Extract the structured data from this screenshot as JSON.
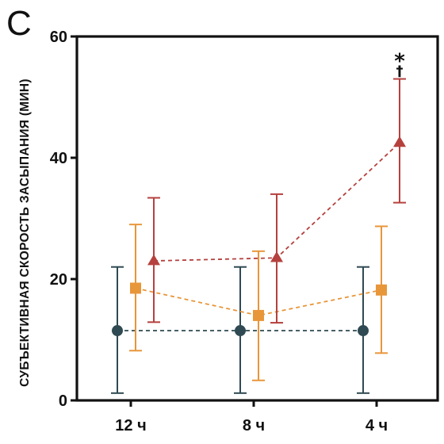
{
  "panel_letter": "C",
  "chart_data": {
    "type": "line",
    "title": "",
    "xlabel": "",
    "ylabel": "СУБЪЕКТИВНАЯ СКОРОСТЬ ЗАСЫПАНИЯ (МИН)",
    "categories": [
      "12 ч",
      "8 ч",
      "4 ч"
    ],
    "ylim": [
      0,
      60
    ],
    "yticks": [
      0,
      20,
      40,
      60
    ],
    "grid": false,
    "error_bars": true,
    "series": [
      {
        "color": "#2f4a52",
        "marker": "circle",
        "values": [
          11.5,
          11.5,
          11.5
        ],
        "err_low": [
          1.2,
          1.2,
          1.2
        ],
        "err_high": [
          22,
          22,
          22
        ]
      },
      {
        "color": "#e8963a",
        "marker": "square",
        "values": [
          18.5,
          14,
          18.2
        ],
        "err_low": [
          8.2,
          3.3,
          7.8
        ],
        "err_high": [
          29,
          24.6,
          28.7
        ]
      },
      {
        "color": "#b5413e",
        "marker": "triangle",
        "values": [
          23,
          23.5,
          42.5
        ],
        "err_low": [
          12.9,
          12.8,
          32.6
        ],
        "err_high": [
          33.4,
          34,
          53
        ]
      }
    ],
    "annotations": [
      {
        "text": "*",
        "category": "4 ч"
      },
      {
        "text": "†",
        "category": "4 ч"
      }
    ]
  }
}
